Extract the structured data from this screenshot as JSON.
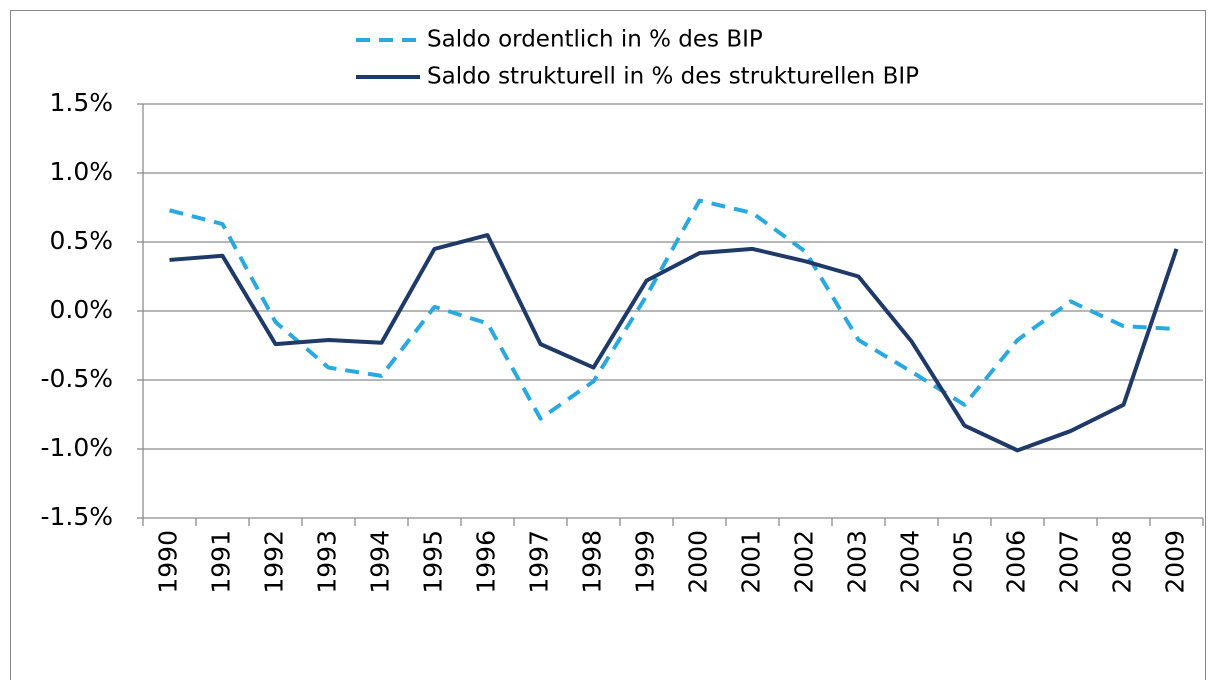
{
  "chart_data": {
    "type": "line",
    "categories": [
      "1990",
      "1991",
      "1992",
      "1993",
      "1994",
      "1995",
      "1996",
      "1997",
      "1998",
      "1999",
      "2000",
      "2001",
      "2002",
      "2003",
      "2004",
      "2005",
      "2006",
      "2007",
      "2008",
      "2009"
    ],
    "series": [
      {
        "name": "Saldo ordentlich in % des BIP",
        "color": "#2aa8e0",
        "dashed": true,
        "values": [
          0.73,
          0.63,
          -0.08,
          -0.41,
          -0.47,
          0.03,
          -0.09,
          -0.78,
          -0.51,
          0.11,
          0.8,
          0.71,
          0.43,
          -0.21,
          -0.44,
          -0.68,
          -0.21,
          0.07,
          -0.11,
          -0.13
        ]
      },
      {
        "name": "Saldo strukturell in % des strukturellen BIP",
        "color": "#1f3a68",
        "dashed": false,
        "values": [
          0.37,
          0.4,
          -0.24,
          -0.21,
          -0.23,
          0.45,
          0.55,
          -0.24,
          -0.41,
          0.22,
          0.42,
          0.45,
          0.36,
          0.25,
          -0.22,
          -0.83,
          -1.01,
          -0.87,
          -0.68,
          0.45
        ]
      }
    ],
    "ylim": [
      -1.5,
      1.5
    ],
    "yticks": [
      {
        "value": -1.5,
        "label": "-1.5%"
      },
      {
        "value": -1.0,
        "label": "-1.0%"
      },
      {
        "value": -0.5,
        "label": "-0.5%"
      },
      {
        "value": 0,
        "label": "0.0%"
      },
      {
        "value": 0.5,
        "label": "0.5%"
      },
      {
        "value": 1.0,
        "label": "1.0%"
      },
      {
        "value": 1.5,
        "label": "1.5%"
      }
    ],
    "grid": true,
    "legend": "top"
  }
}
